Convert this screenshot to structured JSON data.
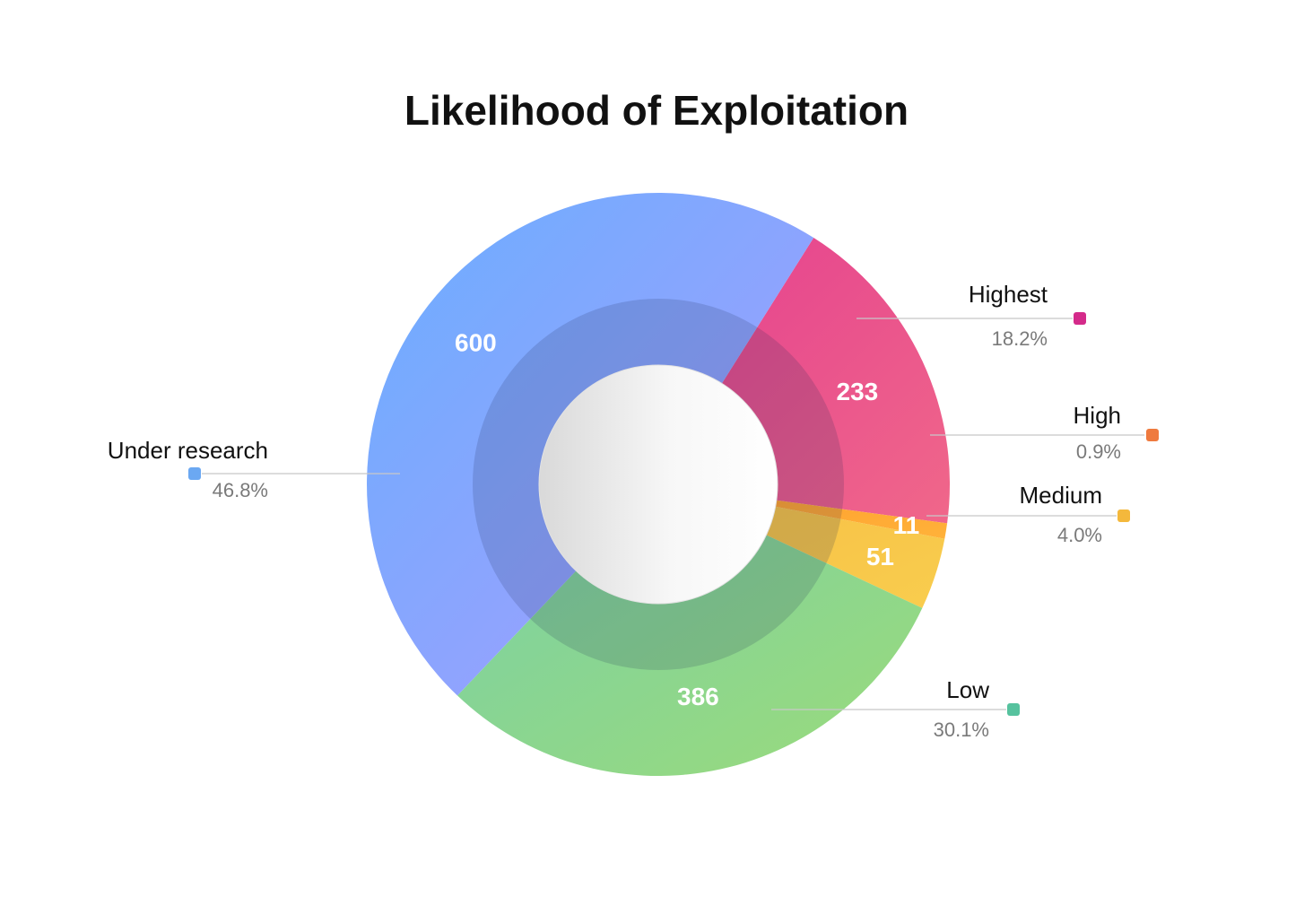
{
  "chart_data": {
    "type": "pie",
    "title": "Likelihood of Exploitation",
    "slices": [
      {
        "label": "Highest",
        "value": 233,
        "percent": "18.2%",
        "color": "#e4408f",
        "color2": "#f0678a",
        "marker": "#d42a8a"
      },
      {
        "label": "High",
        "value": 11,
        "percent": "0.9%",
        "color": "#ff9a2a",
        "color2": "#ffb23a",
        "marker": "#ef7a3e"
      },
      {
        "label": "Medium",
        "value": 51,
        "percent": "4.0%",
        "color": "#f6be44",
        "color2": "#f9cd4e",
        "marker": "#f4b83c"
      },
      {
        "label": "Low",
        "value": 386,
        "percent": "30.1%",
        "color": "#7ad0a6",
        "color2": "#9bdb7a",
        "marker": "#56c29e"
      },
      {
        "label": "Under research",
        "value": 600,
        "percent": "46.8%",
        "color": "#6aaeff",
        "color2": "#a99cfd",
        "marker": "#6ba8f2"
      }
    ],
    "legend": "outside-callouts"
  }
}
